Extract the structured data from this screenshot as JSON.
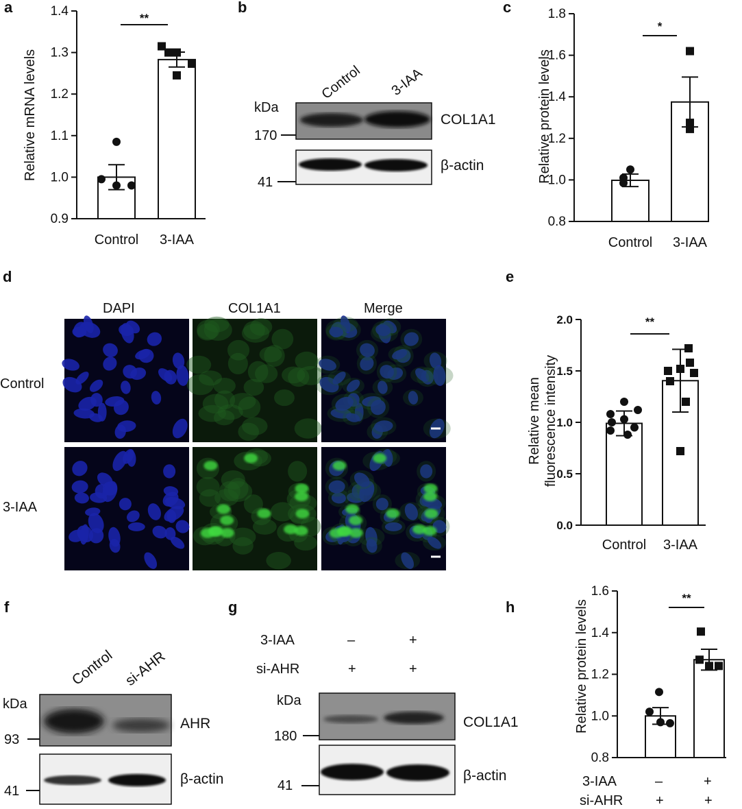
{
  "panels": {
    "a": "a",
    "b": "b",
    "c": "c",
    "d": "d",
    "e": "e",
    "f": "f",
    "g": "g",
    "h": "h"
  },
  "panel_b": {
    "lane_labels": [
      "Control",
      "3-IAA"
    ],
    "kda_label": "kDa",
    "markers": [
      "170",
      "41"
    ],
    "bands": [
      "COL1A1",
      "β-actin"
    ]
  },
  "panel_d": {
    "column_labels": [
      "DAPI",
      "COL1A1",
      "Merge"
    ],
    "row_labels": [
      "Control",
      "3-IAA"
    ]
  },
  "panel_f": {
    "lane_labels": [
      "Control",
      "si-AHR"
    ],
    "kda_label": "kDa",
    "markers": [
      "93",
      "41"
    ],
    "bands": [
      "AHR",
      "β-actin"
    ]
  },
  "panel_g": {
    "row_labels": [
      "3-IAA",
      "si-AHR"
    ],
    "treatment_signs": [
      [
        "–",
        "+"
      ],
      [
        "+",
        "+"
      ]
    ],
    "kda_label": "kDa",
    "markers": [
      "180",
      "41"
    ],
    "bands": [
      "COL1A1",
      "β-actin"
    ]
  },
  "panel_h": {
    "row_labels": [
      "3-IAA",
      "si-AHR"
    ],
    "treatment_signs": [
      [
        "–",
        "+"
      ],
      [
        "+",
        "+"
      ]
    ]
  },
  "chart_data": [
    {
      "panel": "a",
      "type": "bar",
      "categories": [
        "Control",
        "3-IAA"
      ],
      "values": [
        1.0,
        1.283
      ],
      "error": [
        0.03,
        0.018
      ],
      "points": [
        [
          1.085,
          0.995,
          0.98,
          0.98
        ],
        [
          1.315,
          1.3,
          1.3,
          1.273,
          1.245
        ]
      ],
      "markers": [
        "circle",
        "square"
      ],
      "ylabel": "Relative mRNA levels",
      "ylim": [
        0.9,
        1.4
      ],
      "yticks": [
        "0.9",
        "1.0",
        "1.1",
        "1.2",
        "1.3",
        "1.4"
      ],
      "significance": "**"
    },
    {
      "panel": "c",
      "type": "bar",
      "categories": [
        "Control",
        "3-IAA"
      ],
      "values": [
        0.998,
        1.375
      ],
      "error": [
        0.03,
        0.12
      ],
      "points": [
        [
          1.05,
          1.01,
          0.985
        ],
        [
          1.62,
          1.275,
          1.245
        ]
      ],
      "markers": [
        "circle",
        "square"
      ],
      "ylabel": "Relative protein levels",
      "ylim": [
        0.8,
        1.8
      ],
      "yticks": [
        "0.8",
        "1.0",
        "1.2",
        "1.4",
        "1.6",
        "1.8"
      ],
      "significance": "*"
    },
    {
      "panel": "e",
      "type": "bar",
      "categories": [
        "Control",
        "3-IAA"
      ],
      "values": [
        0.99,
        1.405
      ],
      "error": [
        0.12,
        0.305
      ],
      "points": [
        [
          1.2,
          1.12,
          1.08,
          1.03,
          1.0,
          0.95,
          0.92,
          0.88
        ],
        [
          1.72,
          1.58,
          1.52,
          1.5,
          1.48,
          1.4,
          1.2,
          0.72
        ]
      ],
      "markers": [
        "circle",
        "square"
      ],
      "ylabel": "Relative mean fluorescence intensity",
      "ylim": [
        0.0,
        2.0
      ],
      "yticks": [
        "0.0",
        "0.5",
        "1.0",
        "1.5",
        "2.0"
      ],
      "significance": "**"
    },
    {
      "panel": "h",
      "type": "bar",
      "categories": [
        "",
        ""
      ],
      "values": [
        1.0,
        1.27
      ],
      "error": [
        0.04,
        0.05
      ],
      "points": [
        [
          1.115,
          1.02,
          0.97,
          0.965
        ],
        [
          1.405,
          1.27,
          1.24,
          1.24
        ]
      ],
      "markers": [
        "circle",
        "square"
      ],
      "ylabel": "Relative protein levels",
      "ylim": [
        0.8,
        1.6
      ],
      "yticks": [
        "0.8",
        "1.0",
        "1.2",
        "1.4",
        "1.6"
      ],
      "significance": "**"
    }
  ]
}
